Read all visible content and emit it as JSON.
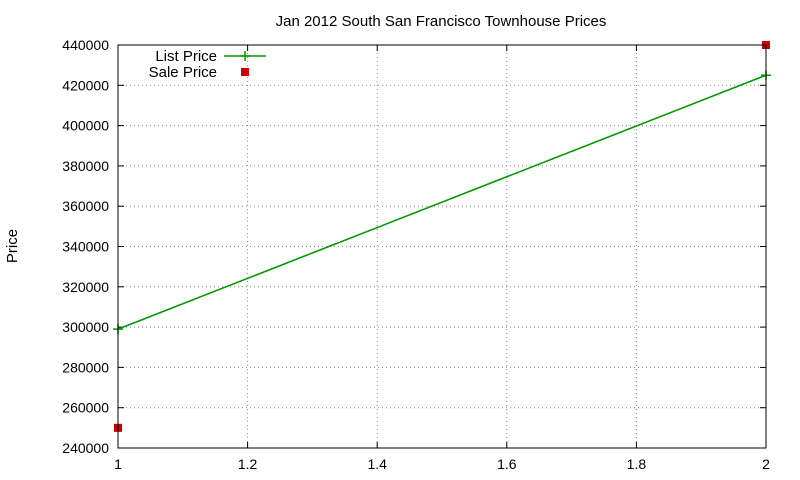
{
  "chart_data": {
    "type": "line",
    "title": "Jan 2012 South San Francisco Townhouse Prices",
    "xlabel": "",
    "ylabel": "Price",
    "xlim": [
      1,
      2
    ],
    "ylim": [
      240000,
      440000
    ],
    "x_ticks": [
      "1",
      "1.2",
      "1.4",
      "1.6",
      "1.8",
      "2"
    ],
    "y_ticks": [
      "240000",
      "260000",
      "280000",
      "300000",
      "320000",
      "340000",
      "360000",
      "380000",
      "400000",
      "420000",
      "440000"
    ],
    "grid": true,
    "legend_position": "top-left",
    "series": [
      {
        "name": "List Price",
        "style": "linespoints",
        "marker": "plus",
        "color": "#009900",
        "x": [
          1,
          2
        ],
        "y": [
          299000,
          425000
        ]
      },
      {
        "name": "Sale Price",
        "style": "points",
        "marker": "square",
        "color": "#cc0000",
        "x": [
          1,
          2
        ],
        "y": [
          250000,
          440000
        ]
      }
    ]
  }
}
